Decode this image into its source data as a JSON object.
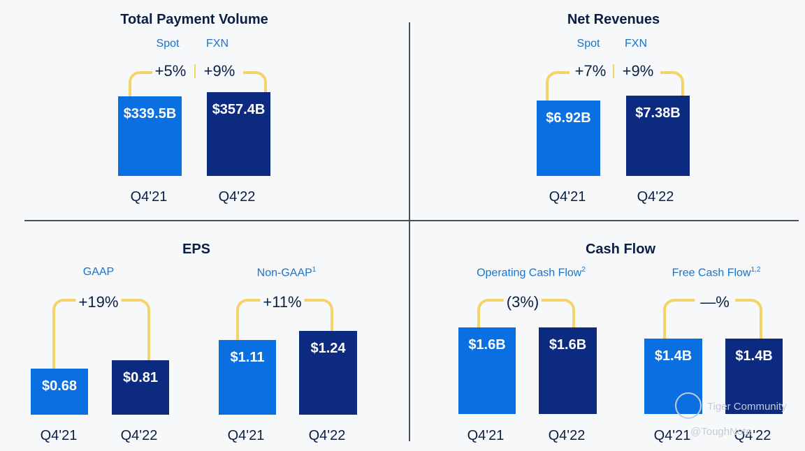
{
  "colors": {
    "spot": "#0a6fe0",
    "fxn": "#0b2a80",
    "bracket": "#f5d36a",
    "title": "#0a1f44",
    "subtitle": "#1a73c8"
  },
  "chart_data": [
    {
      "type": "bar",
      "title": "Total Payment Volume",
      "series_labels": [
        "Spot",
        "FXN"
      ],
      "growth": [
        "+5%",
        "+9%"
      ],
      "categories": [
        "Q4'21",
        "Q4'22"
      ],
      "values": [
        339.5,
        357.4
      ],
      "value_labels": [
        "$339.5B",
        "$357.4B"
      ],
      "unit": "$B"
    },
    {
      "type": "bar",
      "title": "Net Revenues",
      "series_labels": [
        "Spot",
        "FXN"
      ],
      "growth": [
        "+7%",
        "+9%"
      ],
      "categories": [
        "Q4'21",
        "Q4'22"
      ],
      "values": [
        6.92,
        7.38
      ],
      "value_labels": [
        "$6.92B",
        "$7.38B"
      ],
      "unit": "$B"
    },
    {
      "type": "bar",
      "title": "EPS",
      "groups": [
        {
          "label": "GAAP",
          "sup": "",
          "growth": "+19%",
          "categories": [
            "Q4'21",
            "Q4'22"
          ],
          "values": [
            0.68,
            0.81
          ],
          "value_labels": [
            "$0.68",
            "$0.81"
          ]
        },
        {
          "label": "Non-GAAP",
          "sup": "1",
          "growth": "+11%",
          "categories": [
            "Q4'21",
            "Q4'22"
          ],
          "values": [
            1.11,
            1.24
          ],
          "value_labels": [
            "$1.11",
            "$1.24"
          ]
        }
      ]
    },
    {
      "type": "bar",
      "title": "Cash Flow",
      "groups": [
        {
          "label": "Operating Cash Flow",
          "sup": "2",
          "growth": "(3%)",
          "categories": [
            "Q4'21",
            "Q4'22"
          ],
          "values": [
            1.6,
            1.6
          ],
          "value_labels": [
            "$1.6B",
            "$1.6B"
          ]
        },
        {
          "label": "Free Cash Flow",
          "sup": "1,2",
          "growth": "—%",
          "categories": [
            "Q4'21",
            "Q4'22"
          ],
          "values": [
            1.4,
            1.4
          ],
          "value_labels": [
            "$1.4B",
            "$1.4B"
          ]
        }
      ]
    }
  ],
  "watermark": {
    "line1": "Tiger Community",
    "line2": "@ToughNote"
  }
}
